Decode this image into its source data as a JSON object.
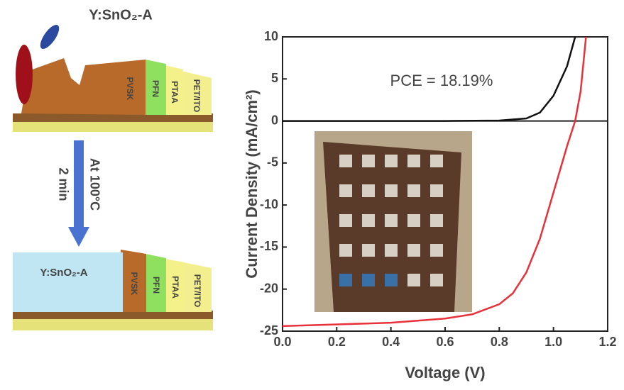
{
  "schematic": {
    "top_label": "Y:SnO₂-A",
    "layers_top": [
      "PVSK",
      "PFN",
      "PTAA",
      "PET/ITO"
    ],
    "process": [
      "At 100°C",
      "2 min"
    ],
    "bottom_label": "Y:SnO₂-A",
    "layers_bottom": [
      "PVSK",
      "PFN",
      "PTAA",
      "PET/ITO"
    ]
  },
  "chart_data": {
    "type": "line",
    "xlabel": "Voltage (V)",
    "ylabel": "Current Density (mA/cm²)",
    "annotation": "PCE = 18.19%",
    "xlim": [
      0,
      1.2
    ],
    "ylim": [
      -25,
      10
    ],
    "xticks": [
      {
        "value": 0,
        "label": "0.0"
      },
      0.2,
      0.4,
      0.6,
      0.8,
      {
        "value": 1,
        "label": "1.0"
      },
      1.2
    ],
    "yticks": [
      -25,
      -20,
      -15,
      -10,
      -5,
      0,
      5,
      10
    ],
    "series": [
      {
        "color": "#e8313a",
        "x": [
          0,
          0.2,
          0.4,
          0.6,
          0.7,
          0.8,
          0.85,
          0.9,
          0.95,
          1.0,
          1.05,
          1.08,
          1.1,
          1.12
        ],
        "values": [
          -24.4,
          -24.2,
          -24.0,
          -23.5,
          -23.0,
          -21.8,
          -20.5,
          -18.0,
          -14.0,
          -8.5,
          -3.0,
          0,
          3.5,
          10
        ]
      },
      {
        "color": "#111111",
        "x": [
          0,
          0.6,
          0.8,
          0.9,
          0.95,
          1.0,
          1.05,
          1.08
        ],
        "values": [
          0,
          0,
          0.05,
          0.3,
          1.0,
          3.0,
          6.5,
          10
        ]
      }
    ]
  }
}
